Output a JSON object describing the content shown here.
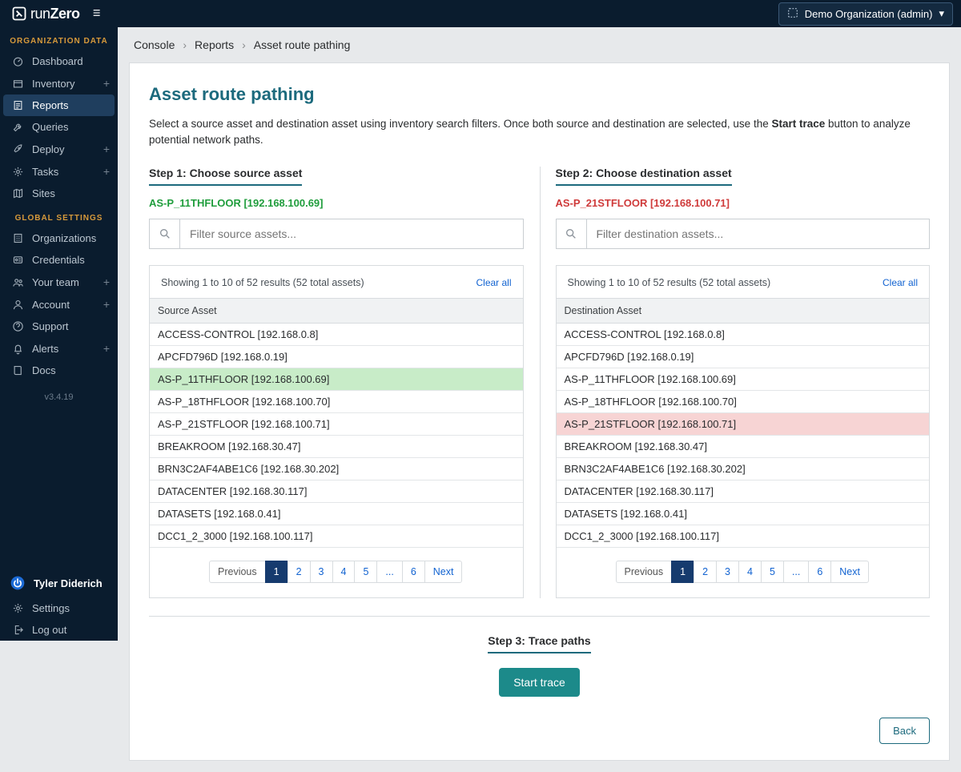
{
  "colors": {
    "topbar_bg": "#0a1c2e",
    "accent_teal": "#1c6a7d",
    "accent_orange": "#d79a3b",
    "link_blue": "#1263d1",
    "pager_current_bg": "#163b6e",
    "selected_green": "#1f9d3c",
    "selected_red": "#cf3a3a",
    "row_green": "#c8ecc8",
    "row_red": "#f7d4d4",
    "primary_btn": "#1c8a8a"
  },
  "topbar": {
    "brand": "runZero",
    "org_label": "Demo Organization (admin)"
  },
  "sidebar": {
    "section_org": "ORGANIZATION DATA",
    "section_global": "GLOBAL SETTINGS",
    "version": "v3.4.19",
    "user_name": "Tyler Diderich",
    "items_org": [
      {
        "label": "Dashboard",
        "icon": "gauge-icon",
        "plus": false
      },
      {
        "label": "Inventory",
        "icon": "box-icon",
        "plus": true
      },
      {
        "label": "Reports",
        "icon": "report-icon",
        "plus": false,
        "active": true
      },
      {
        "label": "Queries",
        "icon": "wrench-icon",
        "plus": false
      },
      {
        "label": "Deploy",
        "icon": "rocket-icon",
        "plus": true
      },
      {
        "label": "Tasks",
        "icon": "gear-icon",
        "plus": true
      },
      {
        "label": "Sites",
        "icon": "map-icon",
        "plus": false
      }
    ],
    "items_global": [
      {
        "label": "Organizations",
        "icon": "building-icon",
        "plus": false
      },
      {
        "label": "Credentials",
        "icon": "badge-icon",
        "plus": false
      },
      {
        "label": "Your team",
        "icon": "people-icon",
        "plus": true
      },
      {
        "label": "Account",
        "icon": "person-icon",
        "plus": true
      },
      {
        "label": "Support",
        "icon": "help-icon",
        "plus": false
      },
      {
        "label": "Alerts",
        "icon": "bell-icon",
        "plus": true
      },
      {
        "label": "Docs",
        "icon": "book-icon",
        "plus": false
      }
    ],
    "items_bottom": [
      {
        "label": "Settings",
        "icon": "cog-icon"
      },
      {
        "label": "Log out",
        "icon": "logout-icon"
      }
    ]
  },
  "breadcrumbs": {
    "a": "Console",
    "b": "Reports",
    "c": "Asset route pathing"
  },
  "page": {
    "title": "Asset route pathing",
    "subtitle_pre": "Select a source asset and destination asset using inventory search filters. Once both source and destination are selected, use the ",
    "subtitle_bold": "Start trace",
    "subtitle_post": " button to analyze potential network paths."
  },
  "steps": {
    "s1": "Step 1: Choose source asset",
    "s2": "Step 2: Choose destination asset",
    "s3": "Step 3: Trace paths"
  },
  "source": {
    "selected": "AS-P_11THFLOOR [192.168.100.69]",
    "filter_placeholder": "Filter source assets...",
    "results_text": "Showing 1 to 10 of 52 results (52 total assets)",
    "clear": "Clear all",
    "column": "Source Asset",
    "selected_index": 2,
    "rows": [
      "ACCESS-CONTROL [192.168.0.8]",
      "APCFD796D [192.168.0.19]",
      "AS-P_11THFLOOR [192.168.100.69]",
      "AS-P_18THFLOOR [192.168.100.70]",
      "AS-P_21STFLOOR [192.168.100.71]",
      "BREAKROOM [192.168.30.47]",
      "BRN3C2AF4ABE1C6 [192.168.30.202]",
      "DATACENTER [192.168.30.117]",
      "DATASETS [192.168.0.41]",
      "DCC1_2_3000 [192.168.100.117]"
    ]
  },
  "dest": {
    "selected": "AS-P_21STFLOOR [192.168.100.71]",
    "filter_placeholder": "Filter destination assets...",
    "results_text": "Showing 1 to 10 of 52 results (52 total assets)",
    "clear": "Clear all",
    "column": "Destination Asset",
    "selected_index": 4,
    "rows": [
      "ACCESS-CONTROL [192.168.0.8]",
      "APCFD796D [192.168.0.19]",
      "AS-P_11THFLOOR [192.168.100.69]",
      "AS-P_18THFLOOR [192.168.100.70]",
      "AS-P_21STFLOOR [192.168.100.71]",
      "BREAKROOM [192.168.30.47]",
      "BRN3C2AF4ABE1C6 [192.168.30.202]",
      "DATACENTER [192.168.30.117]",
      "DATASETS [192.168.0.41]",
      "DCC1_2_3000 [192.168.100.117]"
    ]
  },
  "pager": {
    "prev": "Previous",
    "pages": [
      "1",
      "2",
      "3",
      "4",
      "5",
      "...",
      "6"
    ],
    "next": "Next",
    "current": "1"
  },
  "actions": {
    "start_trace": "Start trace",
    "back": "Back"
  }
}
